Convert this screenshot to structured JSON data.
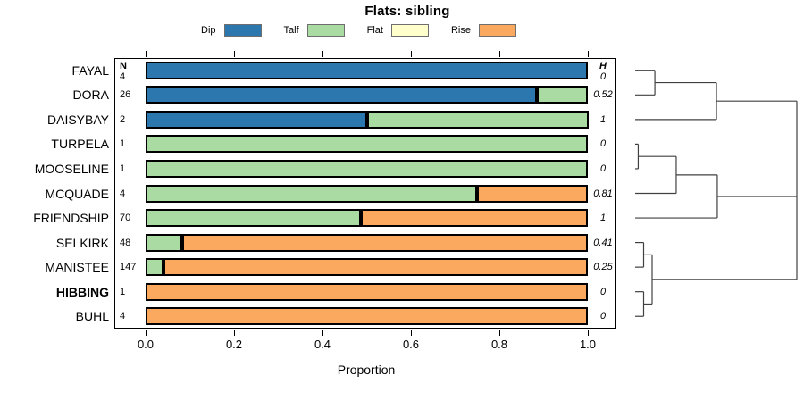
{
  "title": "Flats: sibling",
  "colors": {
    "Dip": "#2d77af",
    "Talf": "#aadba3",
    "Flat": "#ffffcc",
    "Rise": "#fba95e"
  },
  "legend": [
    {
      "label": "Dip"
    },
    {
      "label": "Talf"
    },
    {
      "label": "Flat"
    },
    {
      "label": "Rise"
    }
  ],
  "chart_data": {
    "type": "bar",
    "variant": "horizontal-stacked-proportion-with-dendrogram",
    "title": "Flats: sibling",
    "xlabel": "Proportion",
    "xlim": [
      0,
      1
    ],
    "xticks": [
      "0.0",
      "0.2",
      "0.4",
      "0.6",
      "0.8",
      "1.0"
    ],
    "n_header": "N",
    "h_header": "H",
    "series_keys": [
      "Dip",
      "Talf",
      "Flat",
      "Rise"
    ],
    "categories": [
      "FAYAL",
      "DORA",
      "DAISYBAY",
      "TURPELA",
      "MOOSELINE",
      "MCQUADE",
      "FRIENDSHIP",
      "SELKIRK",
      "MANISTEE",
      "HIBBING",
      "BUHL"
    ],
    "rows": [
      {
        "label": "FAYAL",
        "n": "4",
        "h": "0",
        "bold": false,
        "segments": [
          {
            "key": "Dip",
            "value": 1
          }
        ]
      },
      {
        "label": "DORA",
        "n": "26",
        "h": "0.52",
        "bold": false,
        "segments": [
          {
            "key": "Dip",
            "value": 0.885
          },
          {
            "key": "Talf",
            "value": 0.115
          }
        ]
      },
      {
        "label": "DAISYBAY",
        "n": "2",
        "h": "1",
        "bold": false,
        "segments": [
          {
            "key": "Dip",
            "value": 0.5
          },
          {
            "key": "Talf",
            "value": 0.5
          }
        ]
      },
      {
        "label": "TURPELA",
        "n": "1",
        "h": "0",
        "bold": false,
        "segments": [
          {
            "key": "Talf",
            "value": 1
          }
        ]
      },
      {
        "label": "MOOSELINE",
        "n": "1",
        "h": "0",
        "bold": false,
        "segments": [
          {
            "key": "Talf",
            "value": 1
          }
        ]
      },
      {
        "label": "MCQUADE",
        "n": "4",
        "h": "0.81",
        "bold": false,
        "segments": [
          {
            "key": "Talf",
            "value": 0.75
          },
          {
            "key": "Rise",
            "value": 0.25
          }
        ]
      },
      {
        "label": "FRIENDSHIP",
        "n": "70",
        "h": "1",
        "bold": false,
        "segments": [
          {
            "key": "Talf",
            "value": 0.486
          },
          {
            "key": "Rise",
            "value": 0.514
          }
        ]
      },
      {
        "label": "SELKIRK",
        "n": "48",
        "h": "0.41",
        "bold": false,
        "segments": [
          {
            "key": "Talf",
            "value": 0.083
          },
          {
            "key": "Rise",
            "value": 0.917
          }
        ]
      },
      {
        "label": "MANISTEE",
        "n": "147",
        "h": "0.25",
        "bold": false,
        "segments": [
          {
            "key": "Talf",
            "value": 0.041
          },
          {
            "key": "Rise",
            "value": 0.959
          }
        ]
      },
      {
        "label": "HIBBING",
        "n": "1",
        "h": "0",
        "bold": true,
        "segments": [
          {
            "key": "Rise",
            "value": 1
          }
        ]
      },
      {
        "label": "BUHL",
        "n": "4",
        "h": "0",
        "bold": false,
        "segments": [
          {
            "key": "Rise",
            "value": 1
          }
        ]
      }
    ],
    "dendrogram": {
      "orientation": "right",
      "tree": {
        "h": 1.0,
        "children": [
          {
            "h": 0.503,
            "children": [
              {
                "h": 0.122,
                "children": [
                  0,
                  1
                ]
              },
              2
            ]
          },
          {
            "h": 0.508,
            "children": [
              {
                "h": 0.254,
                "children": [
                  {
                    "h": 0.019,
                    "children": [
                      3,
                      4
                    ]
                  },
                  5
                ]
              },
              6
            ]
          },
          {
            "h": 0.105,
            "children": [
              {
                "h": 0.0525,
                "children": [
                  7,
                  8
                ]
              },
              {
                "h": 0.0525,
                "children": [
                  9,
                  10
                ]
              }
            ]
          }
        ]
      }
    }
  }
}
